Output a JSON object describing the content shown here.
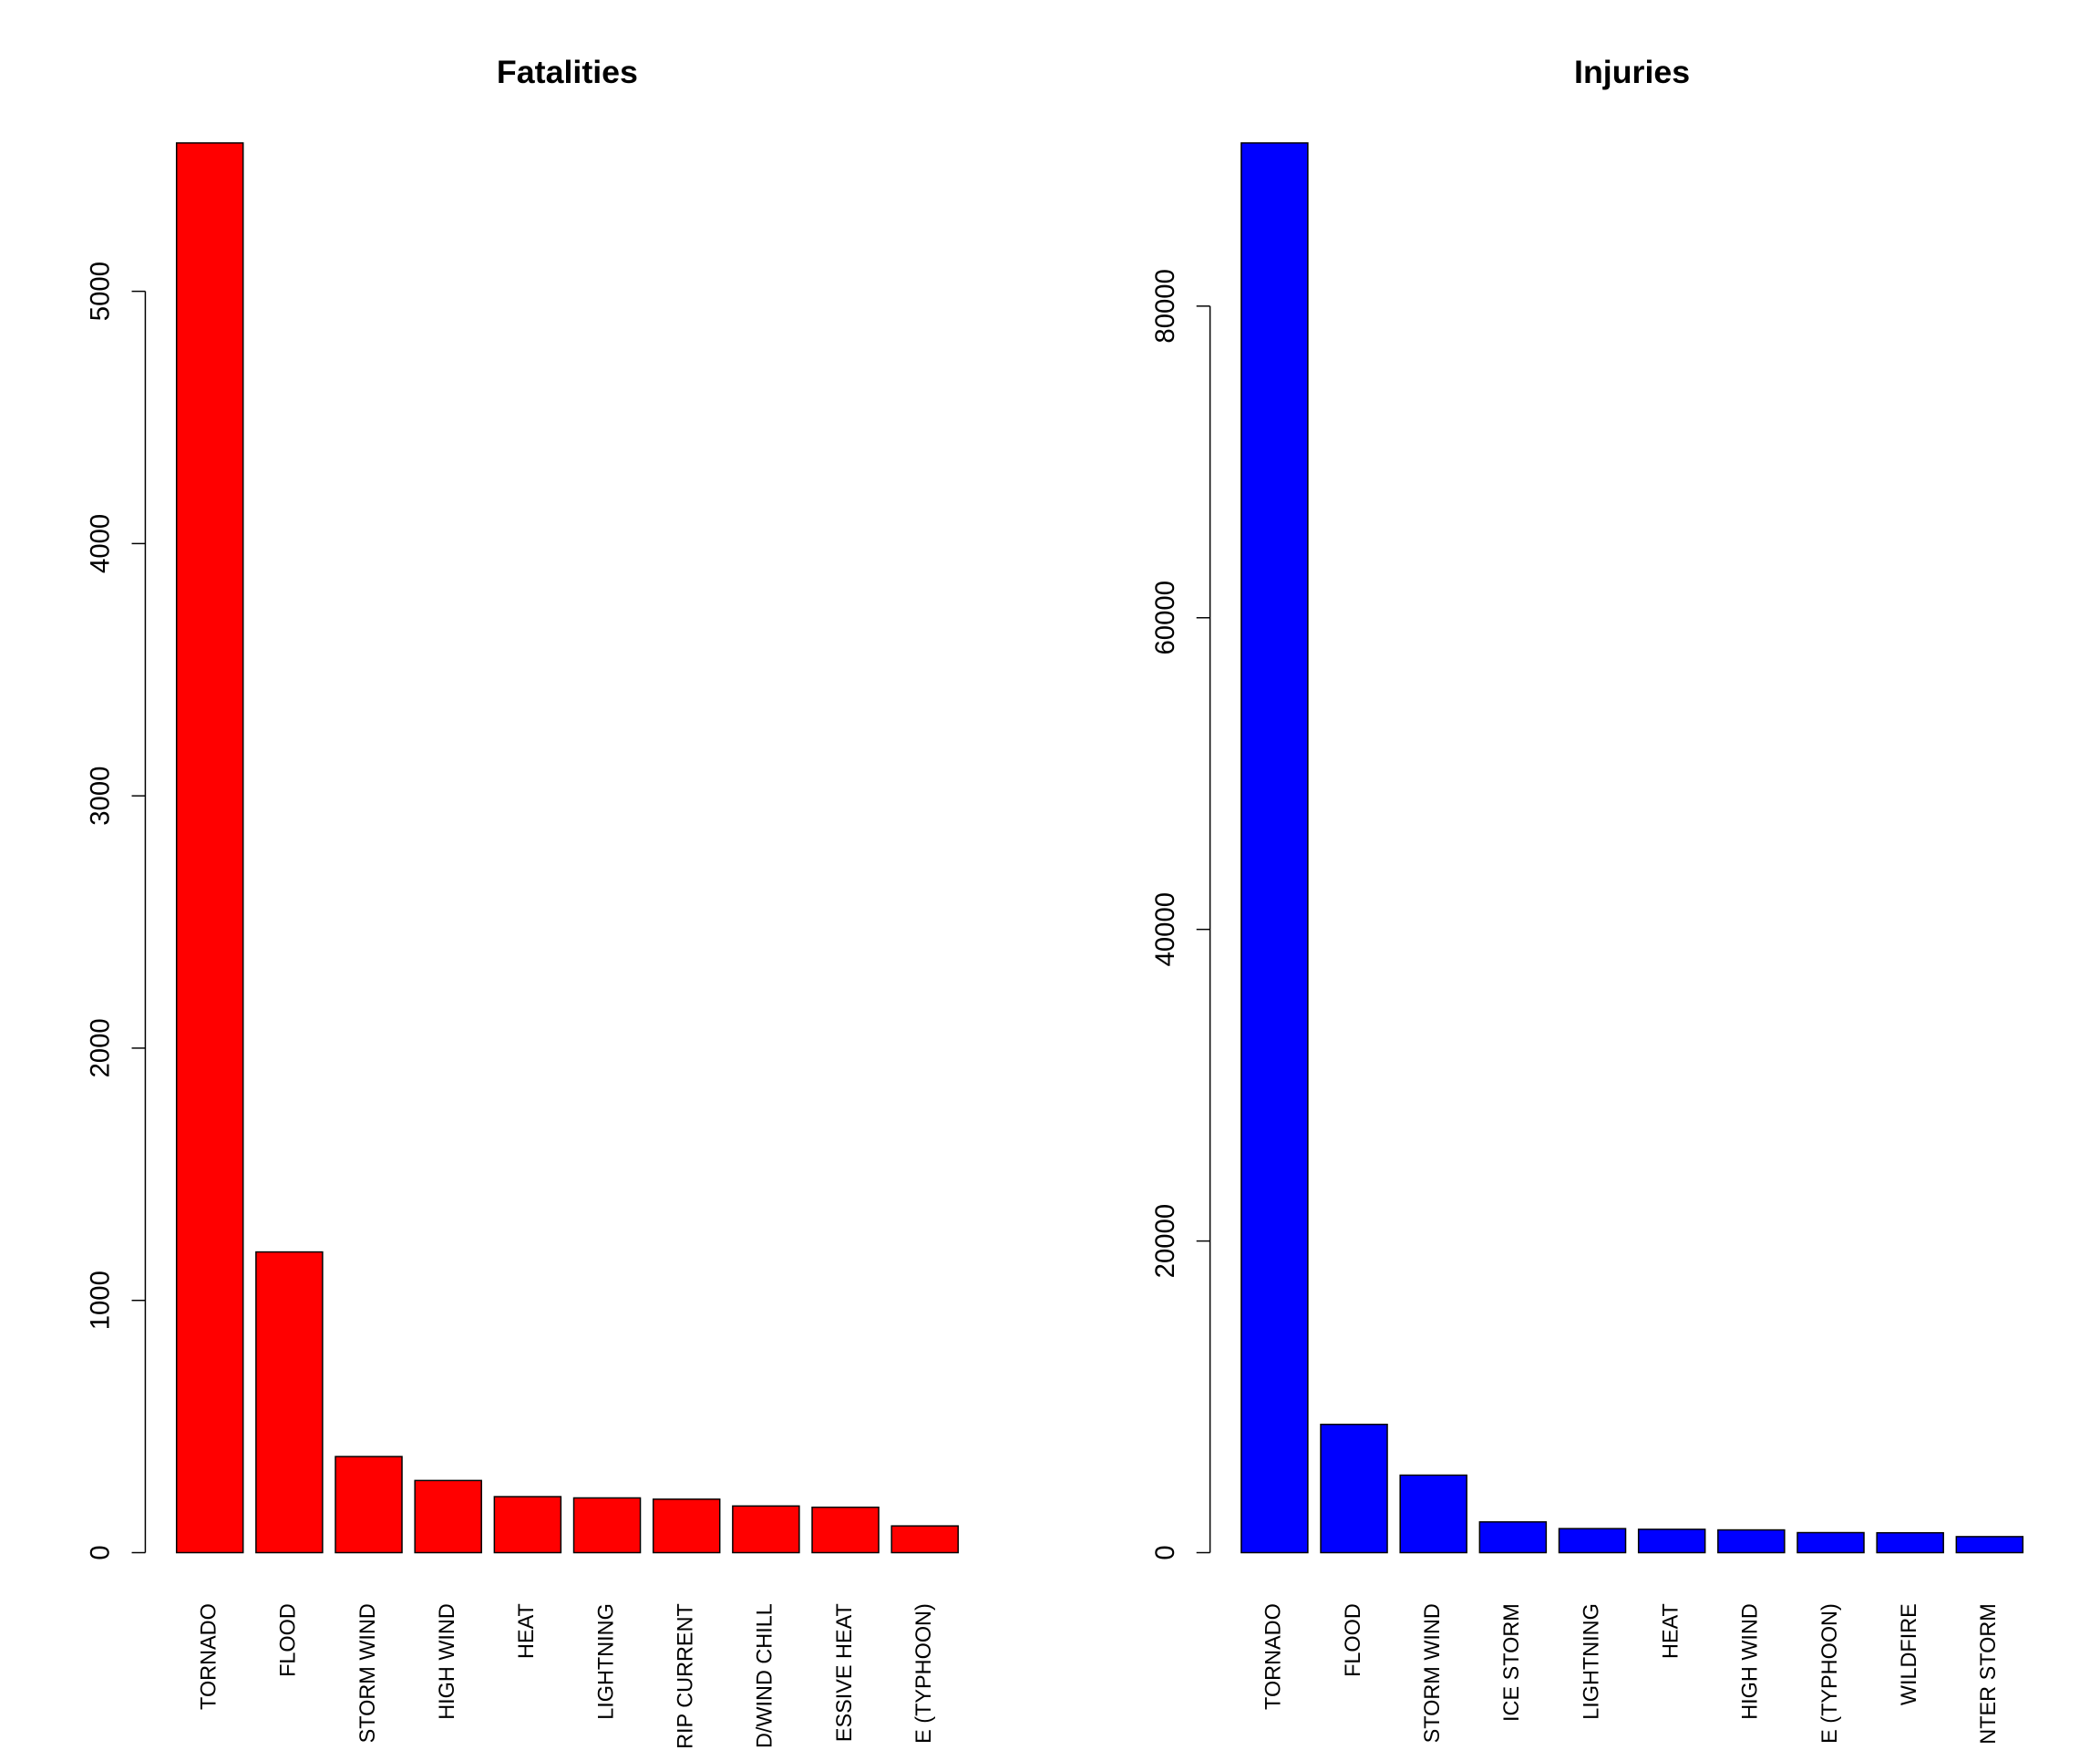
{
  "chart_data": [
    {
      "type": "bar",
      "title": "Fatalities",
      "color": "#ff0000",
      "categories": [
        "TORNADO",
        "FLOOD",
        "STORM WIND",
        "HIGH WIND",
        "HEAT",
        "LIGHTNING",
        "RIP CURRENT",
        "D/WIND CHILL",
        "ESSIVE HEAT",
        "E (TYPHOON)"
      ],
      "values": [
        5588,
        1192,
        381,
        286,
        222,
        217,
        212,
        185,
        180,
        106
      ],
      "ylim": [
        0,
        5588
      ],
      "yticks": [
        0,
        1000,
        2000,
        3000,
        4000,
        5000
      ]
    },
    {
      "type": "bar",
      "title": "Injuries",
      "color": "#0000ff",
      "categories": [
        "TORNADO",
        "FLOOD",
        "STORM WIND",
        "ICE STORM",
        "LIGHTNING",
        "HEAT",
        "HIGH WIND",
        "E (TYPHOON)",
        "WILDFIRE",
        "NTER STORM"
      ],
      "values": [
        90470,
        8233,
        4974,
        1973,
        1544,
        1500,
        1460,
        1286,
        1276,
        1029
      ],
      "ylim": [
        0,
        90470
      ],
      "yticks": [
        0,
        20000,
        40000,
        60000,
        80000
      ]
    }
  ]
}
